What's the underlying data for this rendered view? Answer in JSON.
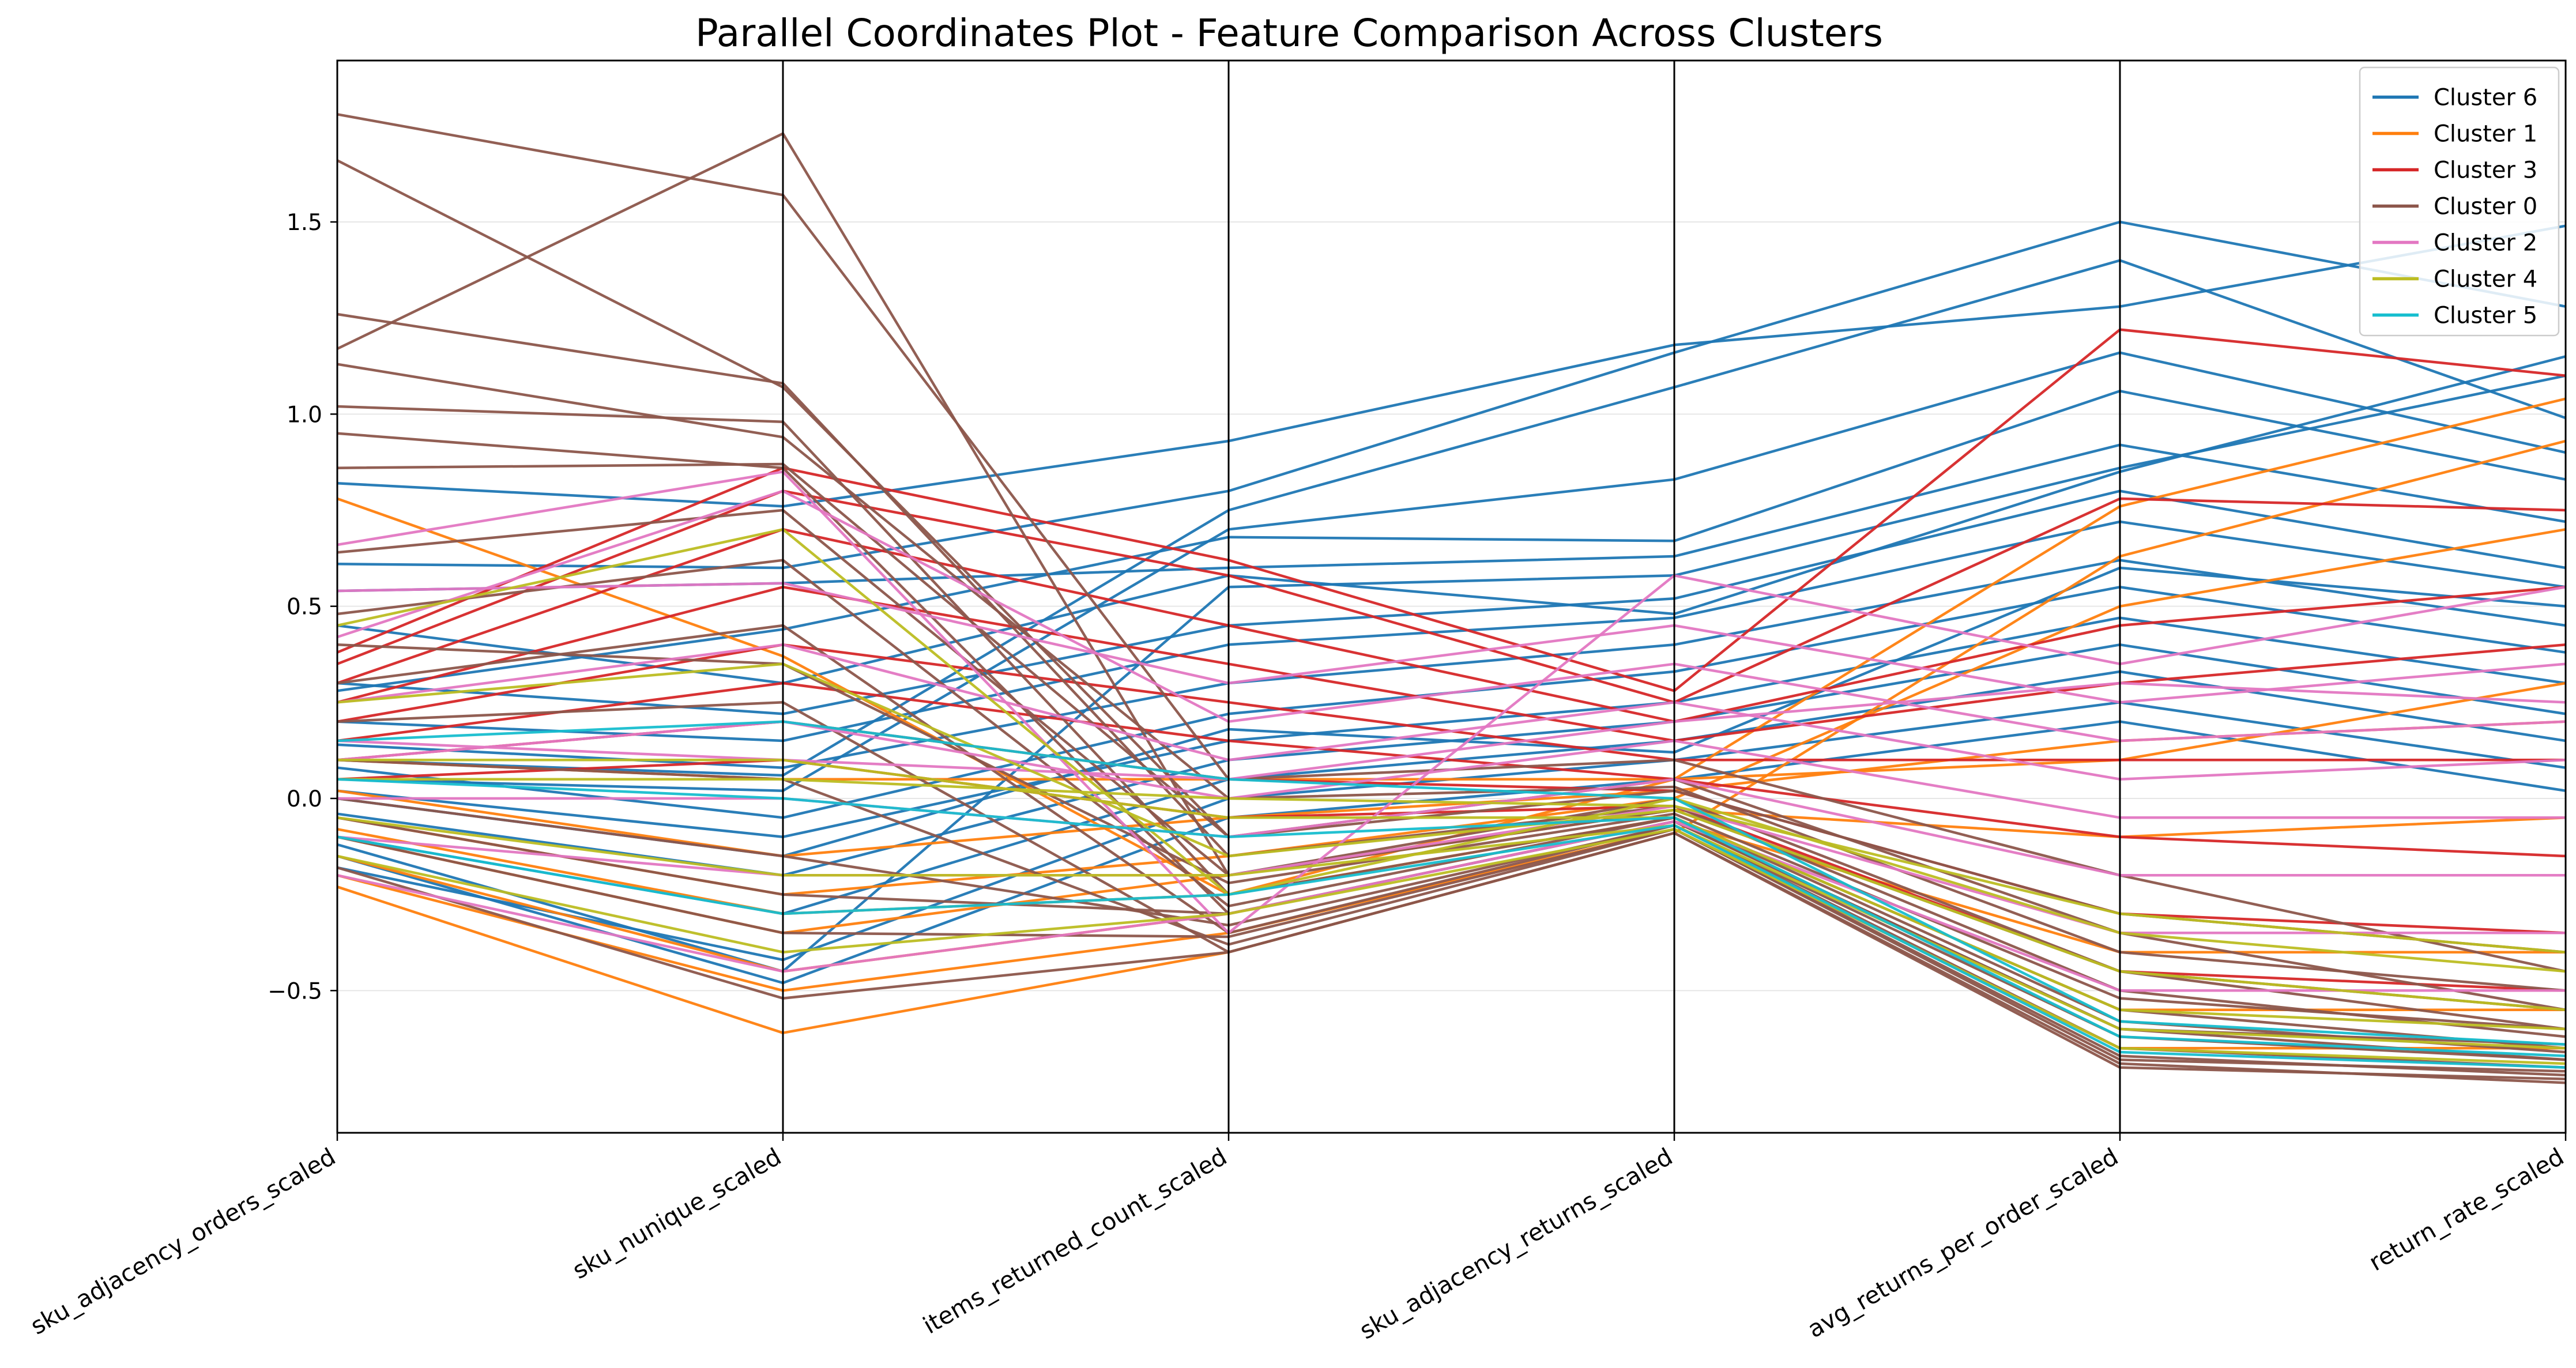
{
  "chart_data": {
    "type": "parallel_coordinates",
    "title": "Parallel Coordinates Plot - Feature Comparison Across Clusters",
    "axes": [
      "sku_adjacency_orders_scaled",
      "sku_nunique_scaled",
      "items_returned_count_scaled",
      "sku_adjacency_returns_scaled",
      "avg_returns_per_order_scaled",
      "return_rate_scaled"
    ],
    "ylim": [
      -0.87,
      1.92
    ],
    "yticks": [
      -0.5,
      0.0,
      0.5,
      1.0,
      1.5
    ],
    "ytick_labels": [
      "−0.5",
      "0.0",
      "0.5",
      "1.0",
      "1.5"
    ],
    "grid": "horizontal",
    "legend_position": "top-right",
    "series": [
      {
        "name": "Cluster 6",
        "color": "#1f77b4",
        "lines": [
          [
            0.82,
            0.76,
            0.93,
            1.18,
            1.28,
            1.49
          ],
          [
            0.61,
            0.6,
            0.8,
            1.16,
            1.5,
            1.28
          ],
          [
            0.1,
            0.06,
            0.75,
            1.07,
            1.4,
            0.99
          ],
          [
            0.05,
            0.02,
            0.7,
            0.83,
            1.16,
            0.9
          ],
          [
            0.28,
            0.44,
            0.68,
            0.67,
            1.06,
            0.83
          ],
          [
            0.54,
            0.56,
            0.6,
            0.63,
            0.92,
            0.72
          ],
          [
            -0.12,
            -0.45,
            0.55,
            0.58,
            0.86,
            1.1
          ],
          [
            0.3,
            0.22,
            0.45,
            0.52,
            0.8,
            0.6
          ],
          [
            0.2,
            0.15,
            0.4,
            0.47,
            0.72,
            0.55
          ],
          [
            0.14,
            0.08,
            0.3,
            0.4,
            0.62,
            0.45
          ],
          [
            0.08,
            -0.05,
            0.22,
            0.33,
            0.55,
            0.38
          ],
          [
            0.02,
            -0.1,
            0.15,
            0.25,
            0.47,
            0.3
          ],
          [
            -0.04,
            -0.2,
            0.1,
            0.2,
            0.4,
            0.22
          ],
          [
            -0.1,
            -0.3,
            0.05,
            0.15,
            0.33,
            0.15
          ],
          [
            -0.18,
            -0.42,
            0.0,
            0.1,
            0.25,
            0.08
          ],
          [
            0.0,
            -0.15,
            0.18,
            0.12,
            0.6,
            0.5
          ],
          [
            0.45,
            0.3,
            0.58,
            0.48,
            0.85,
            1.15
          ],
          [
            -0.15,
            -0.48,
            -0.05,
            0.05,
            0.2,
            0.02
          ]
        ]
      },
      {
        "name": "Cluster 1",
        "color": "#ff7f0e",
        "lines": [
          [
            0.78,
            0.37,
            -0.25,
            0.05,
            0.76,
            1.04
          ],
          [
            -0.23,
            -0.61,
            -0.4,
            -0.09,
            0.63,
            0.93
          ],
          [
            -0.05,
            -0.25,
            -0.15,
            0.0,
            0.5,
            0.7
          ],
          [
            0.02,
            -0.15,
            -0.05,
            0.02,
            0.15,
            0.2
          ],
          [
            -0.1,
            -0.35,
            -0.2,
            -0.03,
            -0.1,
            -0.05
          ],
          [
            -0.15,
            -0.45,
            -0.3,
            -0.06,
            -0.4,
            -0.4
          ],
          [
            -0.2,
            -0.5,
            -0.35,
            -0.08,
            -0.65,
            -0.65
          ],
          [
            0.1,
            0.05,
            0.05,
            0.05,
            0.1,
            0.3
          ],
          [
            -0.08,
            -0.3,
            -0.25,
            -0.05,
            -0.55,
            -0.55
          ]
        ]
      },
      {
        "name": "Cluster 3",
        "color": "#d62728",
        "lines": [
          [
            0.38,
            0.86,
            0.62,
            0.28,
            1.22,
            1.1
          ],
          [
            0.35,
            0.8,
            0.58,
            0.25,
            0.78,
            0.75
          ],
          [
            0.3,
            0.7,
            0.45,
            0.2,
            0.45,
            0.55
          ],
          [
            0.25,
            0.55,
            0.35,
            0.15,
            0.3,
            0.4
          ],
          [
            0.2,
            0.4,
            0.25,
            0.1,
            0.1,
            0.1
          ],
          [
            0.15,
            0.3,
            0.15,
            0.05,
            -0.1,
            -0.15
          ],
          [
            0.1,
            0.2,
            0.05,
            0.02,
            -0.3,
            -0.35
          ],
          [
            0.05,
            0.1,
            -0.05,
            -0.02,
            -0.45,
            -0.5
          ]
        ]
      },
      {
        "name": "Cluster 0",
        "color": "#8c564b",
        "lines": [
          [
            1.78,
            1.57,
            0.05,
            0.1,
            -0.2,
            -0.45
          ],
          [
            1.66,
            1.07,
            -0.1,
            0.05,
            -0.35,
            -0.55
          ],
          [
            1.17,
            1.73,
            -0.2,
            0.0,
            -0.45,
            -0.6
          ],
          [
            1.26,
            1.08,
            -0.15,
            -0.02,
            -0.5,
            -0.62
          ],
          [
            1.13,
            0.94,
            0.0,
            0.03,
            -0.4,
            -0.5
          ],
          [
            1.02,
            0.98,
            -0.25,
            -0.05,
            -0.55,
            -0.65
          ],
          [
            0.95,
            0.86,
            -0.3,
            -0.06,
            -0.6,
            -0.68
          ],
          [
            0.86,
            0.87,
            -0.1,
            0.02,
            -0.3,
            -0.4
          ],
          [
            0.64,
            0.75,
            -0.2,
            -0.03,
            -0.45,
            -0.55
          ],
          [
            0.48,
            0.62,
            -0.28,
            -0.05,
            -0.58,
            -0.66
          ],
          [
            0.3,
            0.45,
            -0.35,
            -0.07,
            -0.65,
            -0.7
          ],
          [
            0.2,
            0.25,
            -0.4,
            -0.09,
            -0.69,
            -0.74
          ],
          [
            0.1,
            0.05,
            -0.38,
            -0.08,
            -0.67,
            -0.72
          ],
          [
            0.0,
            -0.15,
            -0.33,
            -0.07,
            -0.62,
            -0.68
          ],
          [
            -0.1,
            -0.35,
            -0.36,
            -0.08,
            -0.68,
            -0.71
          ],
          [
            -0.18,
            -0.52,
            -0.4,
            -0.09,
            -0.7,
            -0.73
          ],
          [
            0.4,
            0.35,
            -0.22,
            -0.04,
            -0.52,
            -0.6
          ],
          [
            -0.05,
            -0.25,
            -0.3,
            -0.06,
            -0.6,
            -0.64
          ]
        ]
      },
      {
        "name": "Cluster 2",
        "color": "#e377c2",
        "lines": [
          [
            0.66,
            0.85,
            -0.35,
            0.58,
            0.35,
            0.55
          ],
          [
            0.54,
            0.56,
            0.3,
            0.45,
            0.25,
            0.35
          ],
          [
            0.42,
            0.8,
            0.2,
            0.35,
            0.15,
            0.2
          ],
          [
            0.25,
            0.4,
            0.1,
            0.25,
            0.05,
            0.1
          ],
          [
            0.1,
            0.2,
            0.0,
            0.15,
            -0.05,
            -0.05
          ],
          [
            0.0,
            0.0,
            -0.1,
            0.05,
            -0.2,
            -0.2
          ],
          [
            -0.1,
            -0.2,
            -0.2,
            -0.02,
            -0.35,
            -0.35
          ],
          [
            -0.2,
            -0.45,
            -0.3,
            -0.06,
            -0.5,
            -0.5
          ],
          [
            0.15,
            0.1,
            0.05,
            0.2,
            0.3,
            0.25
          ]
        ]
      },
      {
        "name": "Cluster 4",
        "color": "#bcbd22",
        "lines": [
          [
            0.45,
            0.7,
            -0.25,
            0.0,
            -0.35,
            -0.45
          ],
          [
            0.25,
            0.35,
            -0.15,
            -0.03,
            -0.45,
            -0.55
          ],
          [
            0.1,
            0.1,
            -0.05,
            -0.05,
            -0.55,
            -0.6
          ],
          [
            -0.05,
            -0.2,
            -0.2,
            -0.07,
            -0.6,
            -0.65
          ],
          [
            -0.15,
            -0.4,
            -0.3,
            -0.08,
            -0.65,
            -0.69
          ],
          [
            0.05,
            0.05,
            0.0,
            -0.02,
            -0.3,
            -0.4
          ]
        ]
      },
      {
        "name": "Cluster 5",
        "color": "#17becf",
        "lines": [
          [
            0.05,
            0.0,
            -0.1,
            -0.05,
            -0.62,
            -0.67
          ],
          [
            -0.1,
            -0.3,
            -0.25,
            -0.07,
            -0.66,
            -0.7
          ],
          [
            0.15,
            0.2,
            0.05,
            0.0,
            -0.58,
            -0.64
          ]
        ]
      }
    ]
  }
}
